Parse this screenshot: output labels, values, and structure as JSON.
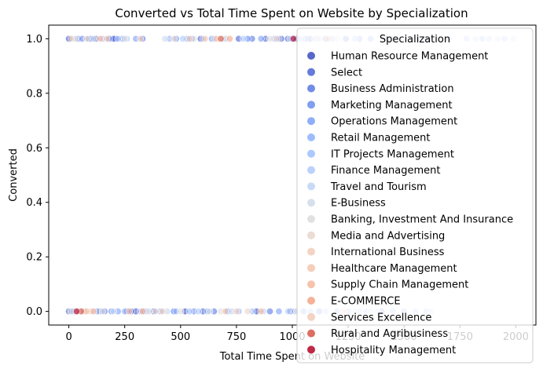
{
  "chart_data": {
    "type": "scatter",
    "title": "Converted vs Total Time Spent on Website by Specialization",
    "xlabel": "Total Time Spent on Website",
    "ylabel": "Converted",
    "xlim": [
      -90,
      2090
    ],
    "ylim": [
      -0.05,
      1.05
    ],
    "x_ticks": [
      0,
      250,
      500,
      750,
      1000,
      1250,
      1500,
      1750,
      2000
    ],
    "x_tick_labels": [
      "0",
      "250",
      "500",
      "750",
      "1000",
      "1250",
      "1500",
      "1750",
      "2000"
    ],
    "y_ticks": [
      0.0,
      0.2,
      0.4,
      0.6,
      0.8,
      1.0
    ],
    "y_tick_labels": [
      "0.0",
      "0.2",
      "0.4",
      "0.6",
      "0.8",
      "1.0"
    ],
    "grid": false,
    "legend": {
      "title": "Specialization",
      "placement": "upper-right"
    },
    "series": [
      {
        "name": "Human Resource Management",
        "color": "#3b4cc0",
        "points": [
          [
            5,
            1
          ],
          [
            120,
            1
          ],
          [
            210,
            1
          ],
          [
            590,
            1
          ],
          [
            950,
            1
          ],
          [
            1020,
            1
          ],
          [
            15,
            0
          ],
          [
            125,
            0
          ],
          [
            300,
            0
          ],
          [
            520,
            0
          ],
          [
            840,
            0
          ]
        ]
      },
      {
        "name": "Select",
        "color": "#4a63d3",
        "points": [
          [
            0,
            1
          ],
          [
            90,
            1
          ],
          [
            200,
            1
          ],
          [
            760,
            1
          ],
          [
            880,
            1
          ],
          [
            980,
            1
          ],
          [
            1080,
            1
          ],
          [
            1150,
            1
          ],
          [
            0,
            0
          ],
          [
            50,
            0
          ],
          [
            140,
            0
          ],
          [
            260,
            0
          ],
          [
            380,
            0
          ],
          [
            600,
            0
          ],
          [
            990,
            0
          ]
        ]
      },
      {
        "name": "Business Administration",
        "color": "#5a78e4",
        "points": [
          [
            40,
            1
          ],
          [
            180,
            1
          ],
          [
            330,
            1
          ],
          [
            550,
            1
          ],
          [
            820,
            1
          ],
          [
            1000,
            1
          ],
          [
            1240,
            1
          ],
          [
            30,
            0
          ],
          [
            160,
            0
          ],
          [
            280,
            0
          ],
          [
            470,
            0
          ],
          [
            650,
            0
          ],
          [
            900,
            0
          ],
          [
            1120,
            0
          ]
        ]
      },
      {
        "name": "Marketing Management",
        "color": "#6b8df0",
        "points": [
          [
            60,
            1
          ],
          [
            240,
            1
          ],
          [
            480,
            1
          ],
          [
            640,
            1
          ],
          [
            800,
            1
          ],
          [
            1060,
            1
          ],
          [
            1300,
            1
          ],
          [
            70,
            0
          ],
          [
            190,
            0
          ],
          [
            340,
            0
          ],
          [
            560,
            0
          ],
          [
            710,
            0
          ],
          [
            1050,
            0
          ],
          [
            1400,
            0
          ]
        ]
      },
      {
        "name": "Operations Management",
        "color": "#7b9ff9",
        "points": [
          [
            100,
            1
          ],
          [
            300,
            1
          ],
          [
            530,
            1
          ],
          [
            860,
            1
          ],
          [
            1110,
            1
          ],
          [
            1350,
            1
          ],
          [
            1600,
            1
          ],
          [
            20,
            0
          ],
          [
            220,
            0
          ],
          [
            410,
            0
          ],
          [
            620,
            0
          ],
          [
            940,
            0
          ],
          [
            1200,
            0
          ],
          [
            1500,
            0
          ]
        ]
      },
      {
        "name": "Retail Management",
        "color": "#8db0fe",
        "points": [
          [
            150,
            1
          ],
          [
            450,
            1
          ],
          [
            700,
            1
          ],
          [
            920,
            1
          ],
          [
            1180,
            1
          ],
          [
            1450,
            1
          ],
          [
            1700,
            1
          ],
          [
            1850,
            1
          ],
          [
            80,
            0
          ],
          [
            250,
            0
          ],
          [
            480,
            0
          ],
          [
            760,
            0
          ],
          [
            1010,
            0
          ],
          [
            1250,
            0
          ],
          [
            1450,
            0
          ],
          [
            1600,
            0
          ]
        ]
      },
      {
        "name": "IT Projects Management",
        "color": "#9ebeff",
        "points": [
          [
            220,
            1
          ],
          [
            600,
            1
          ],
          [
            940,
            1
          ],
          [
            1280,
            1
          ],
          [
            1560,
            1
          ],
          [
            1780,
            1
          ],
          [
            1950,
            1
          ],
          [
            110,
            0
          ],
          [
            320,
            0
          ],
          [
            540,
            0
          ],
          [
            820,
            0
          ],
          [
            1080,
            0
          ],
          [
            1330,
            0
          ],
          [
            1550,
            0
          ]
        ]
      },
      {
        "name": "Finance Management",
        "color": "#aec9fc",
        "points": [
          [
            260,
            1
          ],
          [
            510,
            1
          ],
          [
            780,
            1
          ],
          [
            1040,
            1
          ],
          [
            1420,
            1
          ],
          [
            1880,
            1
          ],
          [
            130,
            0
          ],
          [
            350,
            0
          ],
          [
            580,
            0
          ],
          [
            870,
            0
          ],
          [
            1150,
            0
          ],
          [
            1300,
            0
          ]
        ]
      },
      {
        "name": "Travel and Tourism",
        "color": "#c0d4f5",
        "points": [
          [
            20,
            1
          ],
          [
            650,
            1
          ],
          [
            990,
            1
          ],
          [
            1500,
            1
          ],
          [
            1820,
            1
          ],
          [
            1920,
            1
          ],
          [
            1990,
            1
          ],
          [
            200,
            0
          ],
          [
            440,
            0
          ],
          [
            730,
            0
          ],
          [
            980,
            0
          ],
          [
            1380,
            0
          ],
          [
            1620,
            0
          ]
        ]
      },
      {
        "name": "E-Business",
        "color": "#cfdaea",
        "points": [
          [
            110,
            1
          ],
          [
            430,
            1
          ],
          [
            1100,
            1
          ],
          [
            1650,
            1
          ],
          [
            60,
            0
          ],
          [
            630,
            0
          ],
          [
            1350,
            0
          ]
        ]
      },
      {
        "name": "Banking, Investment And Insurance",
        "color": "#dddcdc",
        "points": [
          [
            30,
            1
          ],
          [
            250,
            1
          ],
          [
            560,
            1
          ],
          [
            690,
            1
          ],
          [
            900,
            1
          ],
          [
            1200,
            1
          ],
          [
            10,
            0
          ],
          [
            150,
            0
          ],
          [
            360,
            0
          ],
          [
            500,
            0
          ],
          [
            680,
            0
          ],
          [
            1020,
            0
          ],
          [
            1280,
            0
          ]
        ]
      },
      {
        "name": "Media and Advertising",
        "color": "#e8d6cc",
        "points": [
          [
            80,
            1
          ],
          [
            470,
            1
          ],
          [
            1120,
            1
          ],
          [
            90,
            0
          ],
          [
            390,
            0
          ],
          [
            800,
            0
          ]
        ]
      },
      {
        "name": "International Business",
        "color": "#f1cdba",
        "points": [
          [
            10,
            1
          ],
          [
            320,
            1
          ],
          [
            930,
            1
          ],
          [
            40,
            0
          ],
          [
            420,
            0
          ],
          [
            750,
            0
          ]
        ]
      },
      {
        "name": "Healthcare Management",
        "color": "#f5c4ac",
        "points": [
          [
            170,
            1
          ],
          [
            610,
            1
          ],
          [
            100,
            0
          ],
          [
            700,
            0
          ],
          [
            1230,
            0
          ]
        ]
      },
      {
        "name": "Supply Chain Management",
        "color": "#f7b89c",
        "points": [
          [
            140,
            1
          ],
          [
            660,
            1
          ],
          [
            110,
            0
          ],
          [
            270,
            0
          ],
          [
            860,
            0
          ]
        ]
      },
      {
        "name": "E-COMMERCE",
        "color": "#f6a385",
        "points": [
          [
            720,
            1
          ],
          [
            1160,
            1
          ],
          [
            70,
            0
          ],
          [
            330,
            0
          ]
        ]
      },
      {
        "name": "Services Excellence",
        "color": "#f2cbb7",
        "points": [
          [
            540,
            1
          ],
          [
            80,
            0
          ]
        ]
      },
      {
        "name": "Rural and Agribusiness",
        "color": "#d75445",
        "points": [
          [
            680,
            1
          ],
          [
            55,
            0
          ]
        ]
      },
      {
        "name": "Hospitality Management",
        "color": "#b40426",
        "points": [
          [
            35,
            0
          ],
          [
            1005,
            1
          ]
        ]
      }
    ]
  }
}
